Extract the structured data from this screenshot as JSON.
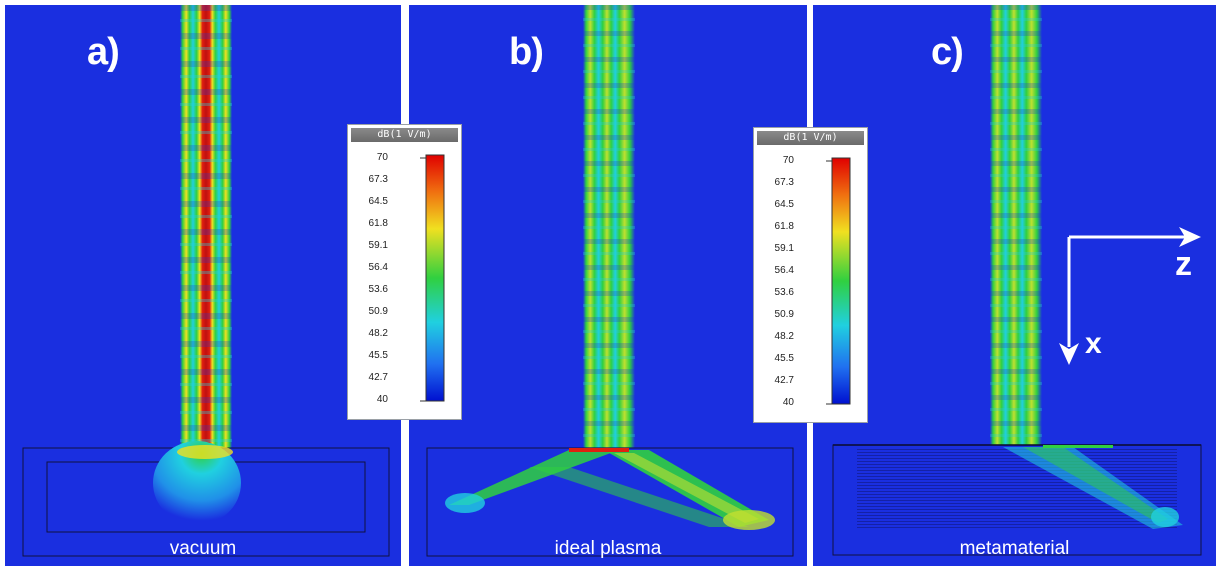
{
  "panels": [
    {
      "label": "a)",
      "medium": "vacuum"
    },
    {
      "label": "b)",
      "medium": "ideal plasma"
    },
    {
      "label": "c)",
      "medium": "metamaterial"
    }
  ],
  "colorbar": {
    "unit": "dB(1 V/m)",
    "ticks": [
      "70",
      "67.3",
      "64.5",
      "61.8",
      "59.1",
      "56.4",
      "53.6",
      "50.9",
      "48.2",
      "45.5",
      "42.7",
      "40"
    ]
  },
  "axes": {
    "horizontal": "z",
    "vertical": "x"
  },
  "colors": {
    "background": "#1a2fe0",
    "hot": "#e02010",
    "warm": "#f0e020",
    "mid": "#30d040",
    "cool": "#20d0e0"
  }
}
